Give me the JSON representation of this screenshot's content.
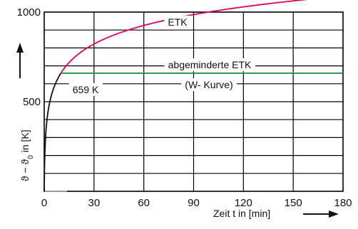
{
  "chart_data": {
    "type": "line",
    "title": "",
    "xlabel": "Zeit  t in [min]",
    "ylabel": "ϑ − ϑ₀ in [K]",
    "ylabel_parts": {
      "main": "ϑ − ϑ",
      "sub": "0",
      "unit": " in [K]"
    },
    "xlim": [
      0,
      180
    ],
    "ylim": [
      0,
      1000
    ],
    "x_ticks": [
      0,
      30,
      60,
      90,
      120,
      150,
      180
    ],
    "x_tick_labels": [
      "0",
      "30",
      "60",
      "90",
      "120",
      "150",
      "180"
    ],
    "y_ticks": [
      500,
      1000
    ],
    "y_tick_labels": [
      "500",
      "1000"
    ],
    "grid": true,
    "series": [
      {
        "name": "ETK",
        "formula": "345*log10(8t+1)",
        "color": "#e0005e"
      },
      {
        "name": "abgeminderte ETK",
        "cap_value": 659,
        "color": "#1a9a3a"
      }
    ],
    "annotations": [
      {
        "text": "ETK"
      },
      {
        "text": "abgeminderte ETK"
      },
      {
        "text": "(W- Kurve)"
      },
      {
        "text": "659 K"
      }
    ],
    "styles": {
      "grid_color": "#000000",
      "base_curve_color": "#111111",
      "x_tick_150_color": "#9a9a9a"
    }
  }
}
